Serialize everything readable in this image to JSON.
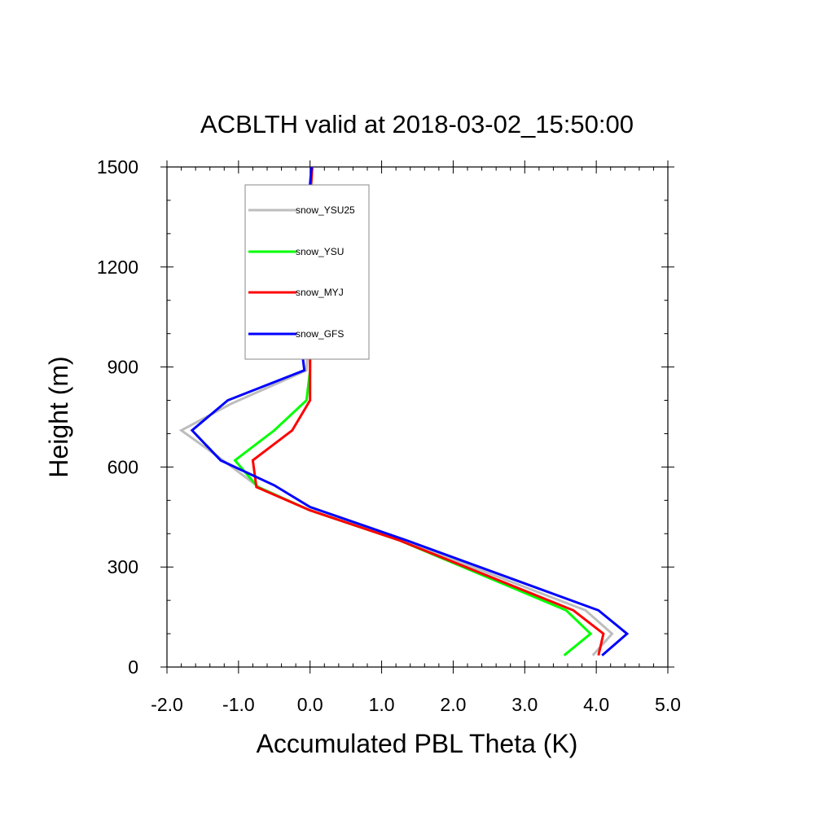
{
  "chart_data": {
    "type": "line",
    "title": "ACBLTH valid at 2018-03-02_15:50:00",
    "xlabel": "Accumulated PBL Theta (K)",
    "ylabel": "Height (m)",
    "xlim": [
      -2.0,
      5.0
    ],
    "ylim": [
      0,
      1500
    ],
    "xticks": [
      "-2.0",
      "-1.0",
      "0.0",
      "1.0",
      "2.0",
      "3.0",
      "4.0",
      "5.0"
    ],
    "yticks": [
      "0",
      "300",
      "600",
      "900",
      "1200",
      "1500"
    ],
    "grid": false,
    "legend_position": "top-left",
    "series": [
      {
        "name": "snow_YSU25",
        "color": "#bdbdbd",
        "points": [
          [
            3.95,
            35
          ],
          [
            4.22,
            100
          ],
          [
            3.85,
            170
          ],
          [
            1.3,
            380
          ],
          [
            0.0,
            470
          ],
          [
            -0.72,
            540
          ],
          [
            -1.28,
            630
          ],
          [
            -1.8,
            710
          ],
          [
            -1.1,
            790
          ],
          [
            -0.05,
            890
          ],
          [
            -0.02,
            1000
          ],
          [
            -0.02,
            1100
          ],
          [
            -0.02,
            1200
          ],
          [
            -0.02,
            1300
          ],
          [
            -0.02,
            1380
          ],
          [
            0.02,
            1500
          ]
        ]
      },
      {
        "name": "snow_YSU",
        "color": "#00ff00",
        "points": [
          [
            3.55,
            35
          ],
          [
            3.92,
            100
          ],
          [
            3.58,
            170
          ],
          [
            1.25,
            380
          ],
          [
            0.0,
            470
          ],
          [
            -0.73,
            540
          ],
          [
            -1.05,
            620
          ],
          [
            -0.5,
            710
          ],
          [
            -0.05,
            800
          ],
          [
            0.0,
            890
          ],
          [
            0.0,
            1000
          ],
          [
            0.0,
            1100
          ],
          [
            0.0,
            1200
          ],
          [
            0.0,
            1300
          ],
          [
            0.0,
            1400
          ],
          [
            0.03,
            1500
          ]
        ]
      },
      {
        "name": "snow_MYJ",
        "color": "#ff0000",
        "points": [
          [
            4.03,
            35
          ],
          [
            4.1,
            100
          ],
          [
            3.68,
            170
          ],
          [
            1.25,
            380
          ],
          [
            0.0,
            470
          ],
          [
            -0.75,
            540
          ],
          [
            -0.8,
            620
          ],
          [
            -0.25,
            710
          ],
          [
            0.0,
            800
          ],
          [
            0.0,
            890
          ],
          [
            0.0,
            1000
          ],
          [
            0.0,
            1100
          ],
          [
            0.0,
            1200
          ],
          [
            0.0,
            1300
          ],
          [
            0.0,
            1400
          ],
          [
            0.03,
            1500
          ]
        ]
      },
      {
        "name": "snow_GFS",
        "color": "#0000ff",
        "points": [
          [
            4.08,
            35
          ],
          [
            4.43,
            100
          ],
          [
            4.03,
            170
          ],
          [
            1.35,
            380
          ],
          [
            0.0,
            480
          ],
          [
            -0.5,
            545
          ],
          [
            -1.25,
            620
          ],
          [
            -1.65,
            710
          ],
          [
            -1.15,
            800
          ],
          [
            -0.08,
            890
          ],
          [
            -0.12,
            960
          ],
          [
            -0.05,
            1100
          ],
          [
            -0.02,
            1200
          ],
          [
            -0.02,
            1300
          ],
          [
            -0.02,
            1400
          ],
          [
            0.02,
            1500
          ]
        ]
      }
    ]
  }
}
